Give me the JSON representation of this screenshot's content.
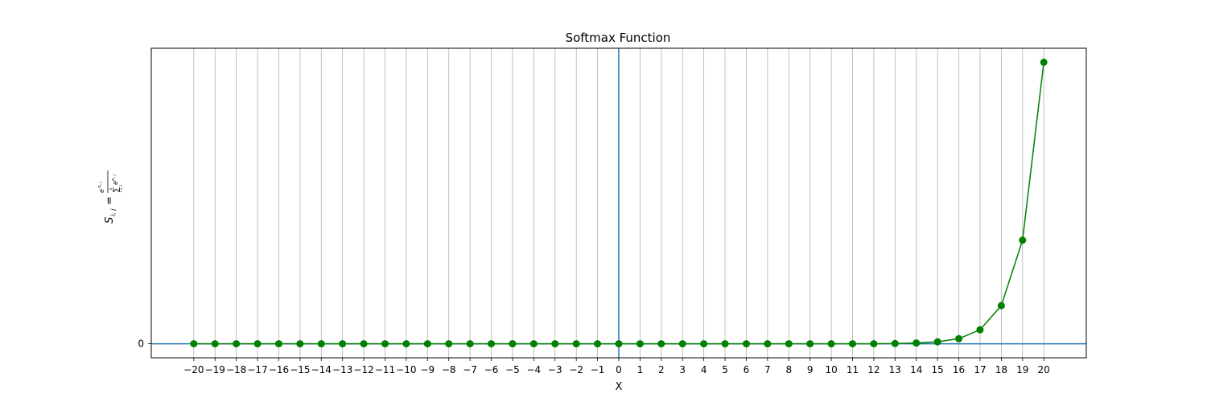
{
  "chart_data": {
    "type": "line",
    "title": "Softmax Function",
    "xlabel": "X",
    "ylabel_parts": {
      "lhs": "S",
      "lhs_sub": "i, j",
      "eq": "=",
      "num_base": "e",
      "num_exp": "z",
      "num_exp_sub": "i, j",
      "den_sum": "∑",
      "den_sum_top": "k",
      "den_sum_bottom": "l = 1",
      "den_base": "e",
      "den_exp": "z",
      "den_exp_sub": "i, j"
    },
    "x": [
      -20,
      -19,
      -18,
      -17,
      -16,
      -15,
      -14,
      -13,
      -12,
      -11,
      -10,
      -9,
      -8,
      -7,
      -6,
      -5,
      -4,
      -3,
      -2,
      -1,
      0,
      1,
      2,
      3,
      4,
      5,
      6,
      7,
      8,
      9,
      10,
      11,
      12,
      13,
      14,
      15,
      16,
      17,
      18,
      19,
      20
    ],
    "y": [
      0,
      0,
      0,
      0,
      0,
      0,
      0,
      0,
      0,
      0,
      0,
      0,
      0,
      0,
      0,
      0,
      0,
      0,
      0,
      0,
      0,
      0,
      0,
      0,
      0,
      0,
      0,
      0,
      0,
      0,
      0,
      0,
      0,
      0.0001,
      0.0003,
      0.0008,
      0.0021,
      0.0058,
      0.0158,
      0.0429,
      0.1166
    ],
    "xticks": [
      "−20",
      "−19",
      "−18",
      "−17",
      "−16",
      "−15",
      "−14",
      "−13",
      "−12",
      "−11",
      "−10",
      "−9",
      "−8",
      "−7",
      "−6",
      "−5",
      "−4",
      "−3",
      "−2",
      "−1",
      "0",
      "1",
      "2",
      "3",
      "4",
      "5",
      "6",
      "7",
      "8",
      "9",
      "10",
      "11",
      "12",
      "13",
      "14",
      "15",
      "16",
      "17",
      "18",
      "19",
      "20"
    ],
    "yticks": [
      "0"
    ],
    "xlim": [
      -22,
      22
    ],
    "ylim": [
      -0.0058,
      0.1224
    ],
    "grid": "vertical",
    "colors": {
      "line": "#008000",
      "axis_lines": "#1f77b4",
      "grid": "#b0b0b0"
    }
  }
}
